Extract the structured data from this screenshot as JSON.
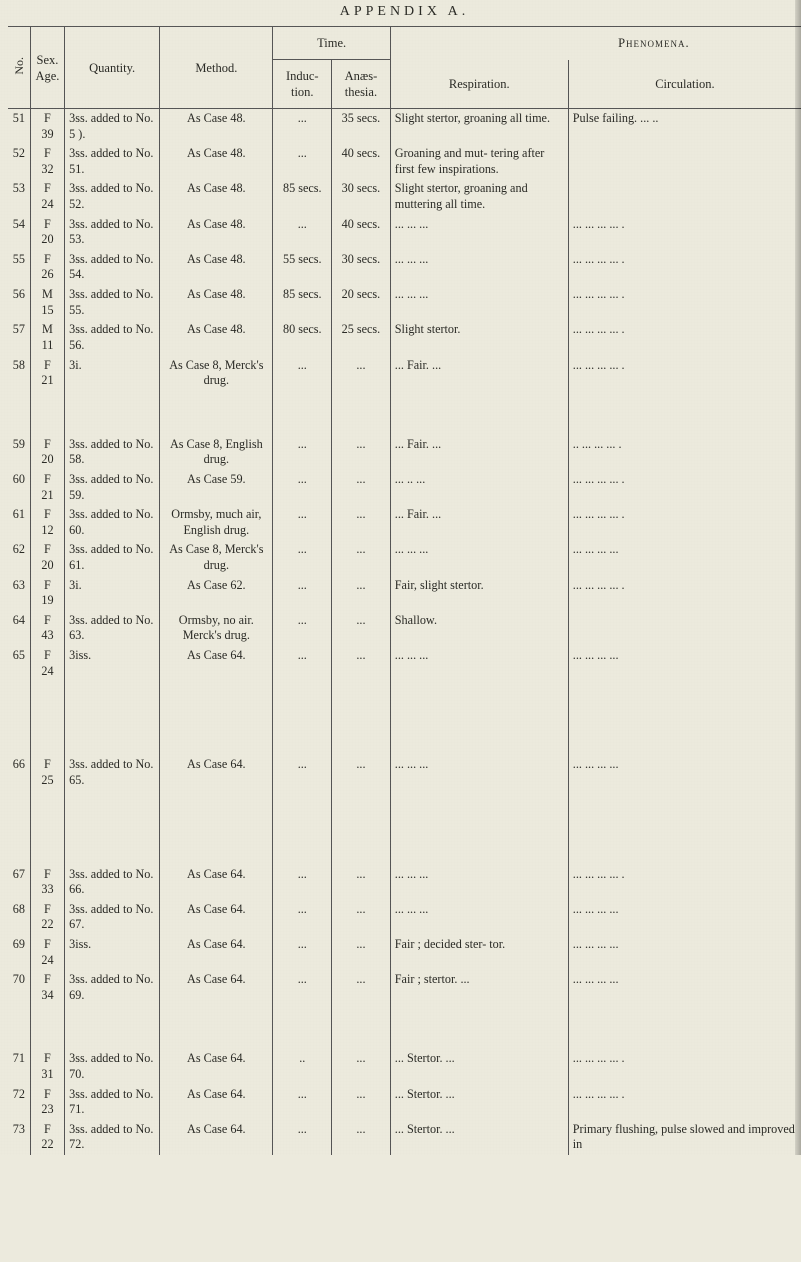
{
  "page_title": "APPENDIX A.",
  "headers": {
    "no": "No.",
    "sex_age": "Sex.\nAge.",
    "quantity": "Quantity.",
    "method": "Method.",
    "time": "Time.",
    "induction": "Induc-\ntion.",
    "anaesthesia": "Anæs-\nthesia.",
    "phenomena": "Phenomena.",
    "respiration": "Respiration.",
    "circulation": "Circulation."
  },
  "rows": [
    {
      "no": "51",
      "sex": "F",
      "age": "39",
      "qty": "3ss. added to No. 5 ).",
      "meth": "As Case 48.",
      "ind": "...",
      "ana": "35 secs.",
      "resp": "Slight stertor, groaning all time.",
      "circ": "Pulse failing.          ...      .."
    },
    {
      "no": "52",
      "sex": "F",
      "age": "32",
      "qty": "3ss. added to No. 51.",
      "meth": "As Case 48.",
      "ind": "...",
      "ana": "40 secs.",
      "resp": "Groaning and mut- tering after first few inspirations.",
      "circ": ""
    },
    {
      "no": "53",
      "sex": "F",
      "age": "24",
      "qty": "3ss. added to No. 52.",
      "meth": "As Case 48.",
      "ind": "85 secs.",
      "ana": "30 secs.",
      "resp": "Slight stertor, groaning and muttering all time.",
      "circ": ""
    },
    {
      "no": "54",
      "sex": "F",
      "age": "20",
      "qty": "3ss. added to No. 53.",
      "meth": "As Case 48.",
      "ind": "...",
      "ana": "40 secs.",
      "resp": "...     ...     ...",
      "circ": "...     ...     ...     ...    ."
    },
    {
      "no": "55",
      "sex": "F",
      "age": "26",
      "qty": "3ss. added to No. 54.",
      "meth": "As Case 48.",
      "ind": "55 secs.",
      "ana": "30 secs.",
      "resp": "...     ...     ...",
      "circ": "...     ...     ...     ...    ."
    },
    {
      "no": "56",
      "sex": "M",
      "age": "15",
      "qty": "3ss. added to No. 55.",
      "meth": "As Case 48.",
      "ind": "85 secs.",
      "ana": "20 secs.",
      "resp": "...     ...     ...",
      "circ": "...     ...     ...     ...    ."
    },
    {
      "no": "57",
      "sex": "M",
      "age": "11",
      "qty": "3ss. added to No. 56.",
      "meth": "As Case 48.",
      "ind": "80 secs.",
      "ana": "25 secs.",
      "resp": "   Slight stertor.",
      "circ": "...     ...     ...     ...    ."
    },
    {
      "no": "58",
      "sex": "F",
      "age": "21",
      "qty": "3i.",
      "meth": "As Case 8, Merck's drug.",
      "ind": "...",
      "ana": "...",
      "resp": "   ...   Fair.   ...",
      "circ": "...     ...     ...     ...    ."
    }
  ],
  "rows2": [
    {
      "no": "59",
      "sex": "F",
      "age": "20",
      "qty": "3ss. added to No. 58.",
      "meth": "As Case 8, English drug.",
      "ind": "...",
      "ana": "...",
      "resp": "   ...   Fair.   ...",
      "circ": "..     ...     ...     ...    ."
    },
    {
      "no": "60",
      "sex": "F",
      "age": "21",
      "qty": "3ss. added to No. 59.",
      "meth": "As Case 59.",
      "ind": "...",
      "ana": "...",
      "resp": "...     ..     ...",
      "circ": "...     ...     ...     ...    ."
    },
    {
      "no": "61",
      "sex": "F",
      "age": "12",
      "qty": "3ss. added to No. 60.",
      "meth": "Ormsby, much air, English drug.",
      "ind": "...",
      "ana": "...",
      "resp": "   ...   Fair.   ...",
      "circ": "...     ...     ...     ...    ."
    },
    {
      "no": "62",
      "sex": "F",
      "age": "20",
      "qty": "3ss. added to No. 61.",
      "meth": "As Case 8, Merck's drug.",
      "ind": "...",
      "ana": "...",
      "resp": "...     ...     ...",
      "circ": "...     ...     ...     ..."
    },
    {
      "no": "63",
      "sex": "F",
      "age": "19",
      "qty": "3i.",
      "meth": "As Case 62.",
      "ind": "...",
      "ana": "...",
      "resp": "Fair, slight stertor.",
      "circ": "...     ...     ...     ...    ."
    },
    {
      "no": "64",
      "sex": "F",
      "age": "43",
      "qty": "3ss. added to No. 63.",
      "meth": "Ormsby, no air. Merck's drug.",
      "ind": "...",
      "ana": "...",
      "resp": "      Shallow.",
      "circ": ""
    },
    {
      "no": "65",
      "sex": "F",
      "age": "24",
      "qty": "3iss.",
      "meth": "As Case 64.",
      "ind": "...",
      "ana": "...",
      "resp": "...     ...     ...",
      "circ": "...     ...     ...     ..."
    }
  ],
  "row66": {
    "no": "66",
    "sex": "F",
    "age": "25",
    "qty": "3ss. added to No. 65.",
    "meth": "As Case 64.",
    "ind": "...",
    "ana": "...",
    "resp": "...      ...      ...",
    "circ": "...     ...     ...     ..."
  },
  "rows3": [
    {
      "no": "67",
      "sex": "F",
      "age": "33",
      "qty": "3ss. added to No. 66.",
      "meth": "As Case 64.",
      "ind": "...",
      "ana": "...",
      "resp": "...      ...      ...",
      "circ": "...     ...     ...     ...    ."
    },
    {
      "no": "68",
      "sex": "F",
      "age": "22",
      "qty": "3ss. added to No. 67.",
      "meth": "As Case 64.",
      "ind": "...",
      "ana": "...",
      "resp": "...      ...      ...",
      "circ": "...     ...     ...     ..."
    },
    {
      "no": "69",
      "sex": "F",
      "age": "24",
      "qty": "3iss.",
      "meth": "As Case 64.",
      "ind": "...",
      "ana": "...",
      "resp": "Fair ; decided ster- tor.",
      "circ": "...     ...     ...     ..."
    },
    {
      "no": "70",
      "sex": "F",
      "age": "34",
      "qty": "3ss. added to No. 69.",
      "meth": "As Case 64.",
      "ind": "...",
      "ana": "...",
      "resp": "Fair ; stertor. ...",
      "circ": "...     ...     ...     ..."
    }
  ],
  "rows4": [
    {
      "no": "71",
      "sex": "F",
      "age": "31",
      "qty": "3ss. added to No. 70.",
      "meth": "As Case 64.",
      "ind": "..",
      "ana": "...",
      "resp": "   ...   Stertor. ...",
      "circ": "...     ...     ...     ...    ."
    },
    {
      "no": "72",
      "sex": "F",
      "age": "23",
      "qty": "3ss. added to No. 71.",
      "meth": "As Case 64.",
      "ind": "...",
      "ana": "...",
      "resp": "   ...   Stertor. ...",
      "circ": "...     ...     ...     ...    ."
    },
    {
      "no": "73",
      "sex": "F",
      "age": "22",
      "qty": "3ss. added to No. 72.",
      "meth": "As Case 64.",
      "ind": "...",
      "ana": "...",
      "resp": "   ...   Stertor. ...",
      "circ": "Primary   flushing,  pulse  slowed  and  improved  in"
    }
  ]
}
